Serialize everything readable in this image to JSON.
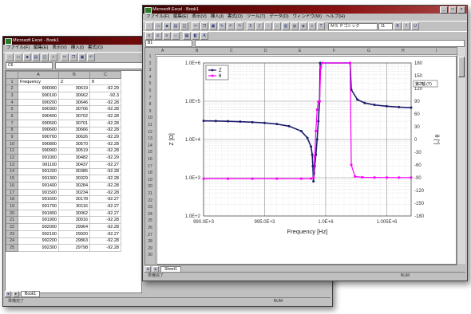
{
  "back_window": {
    "title": "Microsoft Excel - Book1",
    "menu": [
      "ファイル(F)",
      "編集(E)",
      "表示(V)",
      "挿入(I)",
      "書式(O)"
    ],
    "name_box": "C6",
    "columns": [
      "A",
      "B",
      "C"
    ],
    "header_row": [
      "Frequency",
      "Z",
      "θ"
    ],
    "rows": [
      [
        "990000",
        "30619",
        "-92.29"
      ],
      [
        "990100",
        "30662",
        "-92.3"
      ],
      [
        "990200",
        "30646",
        "-92.28"
      ],
      [
        "990300",
        "30706",
        "-92.28"
      ],
      [
        "990400",
        "30702",
        "-92.28"
      ],
      [
        "990500",
        "30701",
        "-92.28"
      ],
      [
        "990600",
        "30666",
        "-92.28"
      ],
      [
        "990700",
        "30626",
        "-92.29"
      ],
      [
        "990800",
        "30570",
        "-92.28"
      ],
      [
        "990900",
        "30519",
        "-92.28"
      ],
      [
        "991000",
        "30482",
        "-92.29"
      ],
      [
        "991100",
        "30437",
        "-92.27"
      ],
      [
        "991200",
        "30385",
        "-92.28"
      ],
      [
        "991300",
        "30329",
        "-92.28"
      ],
      [
        "991400",
        "30284",
        "-92.28"
      ],
      [
        "991500",
        "30234",
        "-92.28"
      ],
      [
        "991600",
        "30178",
        "-92.27"
      ],
      [
        "991700",
        "30116",
        "-92.27"
      ],
      [
        "991800",
        "30062",
        "-92.27"
      ],
      [
        "991900",
        "30016",
        "-92.28"
      ],
      [
        "992000",
        "29964",
        "-92.28"
      ],
      [
        "992100",
        "29920",
        "-92.27"
      ],
      [
        "992200",
        "29863",
        "-92.28"
      ],
      [
        "992300",
        "29798",
        "-92.28"
      ]
    ],
    "sheet_tab": "Book1",
    "status": "準備完了",
    "status_right": "NUM"
  },
  "front_window": {
    "title": "Microsoft Excel - Book1",
    "menu": [
      "ファイル(F)",
      "編集(E)",
      "表示(V)",
      "挿入(I)",
      "書式(O)",
      "ツール(T)",
      "データ(D)",
      "ウィンドウ(W)",
      "ヘルプ(H)"
    ],
    "name_box": "B1",
    "font_name": "ＭＳ Ｐゴシック",
    "font_size": "11",
    "columns": [
      "A",
      "B",
      "C",
      "D",
      "E",
      "F",
      "G",
      "H",
      "I"
    ],
    "sheet_tab": "Sheet1",
    "status": "準備完了",
    "status_right": "NUM"
  },
  "chart_data": {
    "type": "line",
    "title": "",
    "xlabel": "Frequency [Hz]",
    "ylabel_left": "Z [Ω]",
    "ylabel_right": "θ [°]",
    "x_ticks": [
      "990.0E+3",
      "995.0E+3",
      "1.0E+6",
      "1.005E+6"
    ],
    "xlim": [
      990000,
      1007000
    ],
    "y_left_ticks": [
      "1.0E+6",
      "1.0E+5",
      "1.0E+4",
      "1.0E+3",
      "1.0E+2"
    ],
    "y_left_scale": "log",
    "y_left_lim": [
      100,
      1000000
    ],
    "y_right_ticks": [
      "180",
      "150",
      "120",
      "90",
      "60",
      "30",
      "0",
      "-30",
      "-60",
      "-90",
      "-120",
      "-150",
      "-180"
    ],
    "y_right_lim": [
      -180,
      180
    ],
    "legend_position": "top-left",
    "axis_callout": "第2軸 (Y)",
    "grid": true,
    "series": [
      {
        "name": "Z",
        "color": "#1c1c6e",
        "axis": "left",
        "points": [
          [
            990000,
            30600
          ],
          [
            991000,
            30400
          ],
          [
            992000,
            29900
          ],
          [
            993000,
            29200
          ],
          [
            994000,
            28300
          ],
          [
            995000,
            27100
          ],
          [
            996000,
            25300
          ],
          [
            997000,
            22300
          ],
          [
            998000,
            16500
          ],
          [
            998500,
            11000
          ],
          [
            998800,
            6500
          ],
          [
            998900,
            4000
          ],
          [
            998950,
            2000
          ],
          [
            999000,
            800
          ],
          [
            999050,
            1300
          ],
          [
            999100,
            2000
          ],
          [
            999200,
            4000
          ],
          [
            999300,
            10000
          ],
          [
            999400,
            30000
          ],
          [
            999500,
            100000
          ],
          [
            999550,
            1000000
          ],
          [
            1002000,
            1000000
          ],
          [
            1002100,
            200000
          ],
          [
            1002600,
            110000
          ],
          [
            1003200,
            90000
          ],
          [
            1004000,
            80000
          ],
          [
            1005000,
            74000
          ],
          [
            1006000,
            70000
          ],
          [
            1007000,
            68000
          ]
        ]
      },
      {
        "name": "θ",
        "color": "#ff00ff",
        "axis": "right",
        "points": [
          [
            990000,
            -92.3
          ],
          [
            992000,
            -92.3
          ],
          [
            994000,
            -92.3
          ],
          [
            996000,
            -92.3
          ],
          [
            998000,
            -92.2
          ],
          [
            998800,
            -92
          ],
          [
            999000,
            -90
          ],
          [
            999100,
            -40
          ],
          [
            999200,
            20
          ],
          [
            999300,
            70
          ],
          [
            999400,
            89
          ],
          [
            999500,
            89.5
          ],
          [
            999600,
            170
          ],
          [
            999700,
            180
          ],
          [
            1002000,
            180
          ],
          [
            1002100,
            -60
          ],
          [
            1002400,
            -87
          ],
          [
            1003000,
            -89
          ],
          [
            1004000,
            -89.5
          ],
          [
            1005000,
            -89.6
          ],
          [
            1006000,
            -89.7
          ],
          [
            1007000,
            -89.7
          ]
        ]
      }
    ]
  }
}
